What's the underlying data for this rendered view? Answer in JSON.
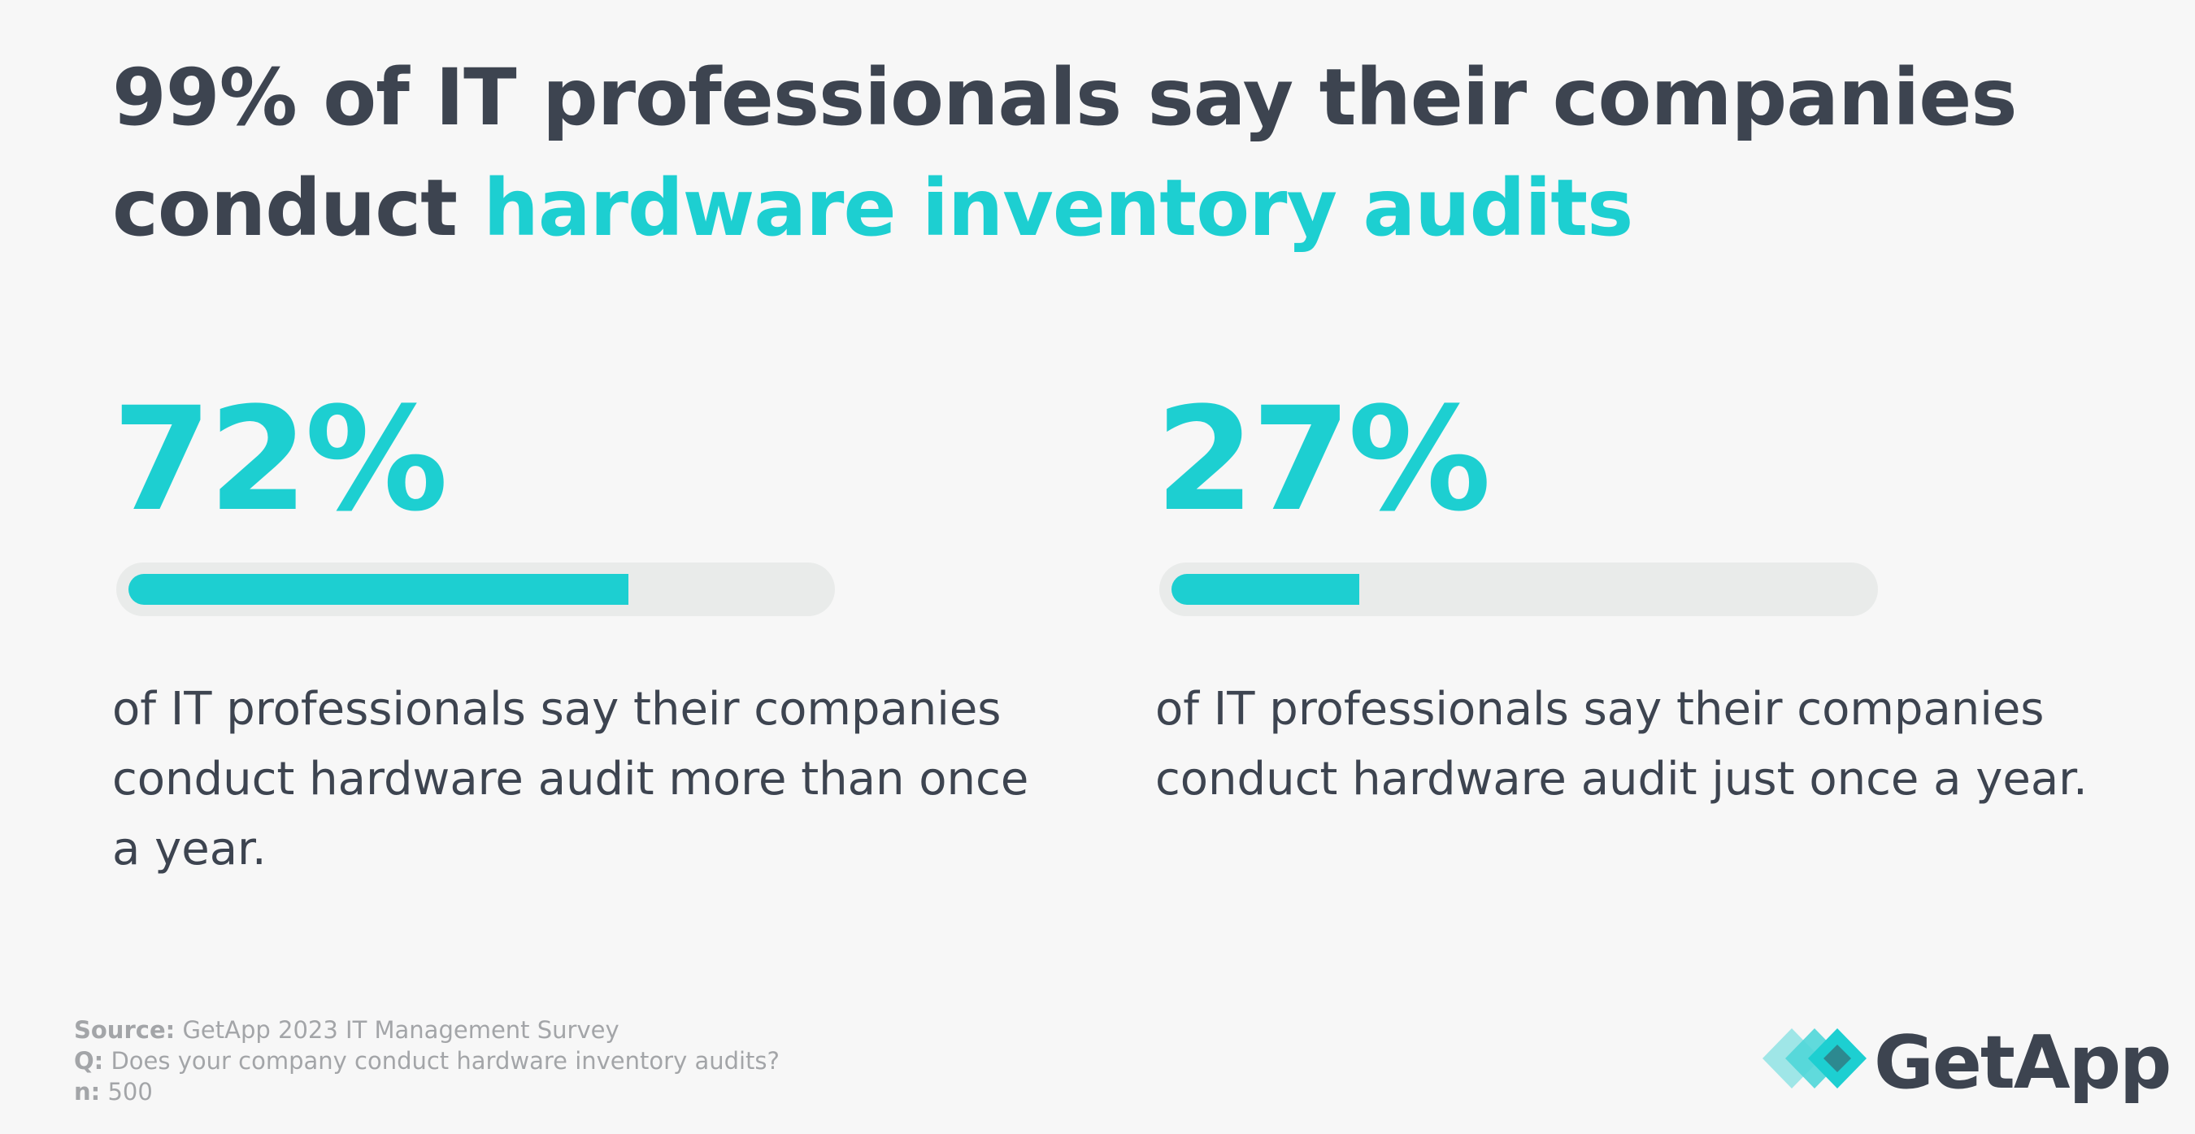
{
  "chart_data": {
    "type": "progress",
    "title": "99% of IT professionals say their companies conduct",
    "title_highlight": "hardware inventory audits",
    "xlim": [
      0,
      100
    ],
    "color": "#1dcfd1",
    "track_color": "#e9ebea",
    "values": [
      72,
      27
    ],
    "value_labels": [
      "72%",
      "27%"
    ],
    "descriptions": [
      "of IT professionals say their companies conduct hardware audit more than once a year.",
      "of IT professionals say their companies conduct hardware audit just once a year."
    ],
    "notes": [
      {
        "label": "Source:",
        "text": "GetApp 2023 IT Management Survey"
      },
      {
        "label": "Q:",
        "text": "Does your company conduct hardware inventory audits?"
      },
      {
        "label": "n:",
        "text": "500"
      }
    ],
    "brand": "GetApp"
  }
}
